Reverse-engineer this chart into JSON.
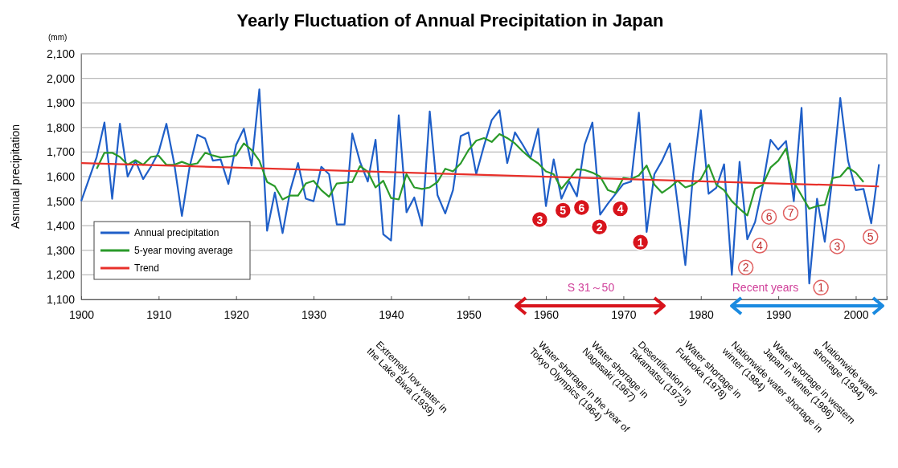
{
  "chart_data": {
    "type": "line",
    "title": "Yearly Fluctuation of Annual Precipitation in Japan",
    "ylabel": "Asnnual precipitation",
    "xlim": [
      1900,
      2004
    ],
    "xticks": [
      1900,
      1910,
      1920,
      1930,
      1940,
      1950,
      1960,
      1970,
      1980,
      1990,
      2000
    ],
    "ylim": [
      1100,
      2100
    ],
    "yticks": [
      {
        "value": 1100,
        "label": "1,100"
      },
      {
        "value": 1200,
        "label": "1,200"
      },
      {
        "value": 1300,
        "label": "1,300"
      },
      {
        "value": 1400,
        "label": "1,400"
      },
      {
        "value": 1500,
        "label": "1,500"
      },
      {
        "value": 1600,
        "label": "1,600"
      },
      {
        "value": 1700,
        "label": "1,700"
      },
      {
        "value": 1800,
        "label": "1,800"
      },
      {
        "value": 1900,
        "label": "1,900"
      },
      {
        "value": 2000,
        "label": "2,000"
      },
      {
        "value": 2100,
        "label": "2,100"
      }
    ],
    "grid": "y",
    "legend": "bottom left",
    "marker": "none",
    "line_style": "solid",
    "series": [
      {
        "name": "Annual precipitation",
        "color": "#1f5fc8",
        "x": [
          1900,
          1901,
          1902,
          1903,
          1904,
          1905,
          1906,
          1907,
          1908,
          1909,
          1910,
          1911,
          1912,
          1913,
          1914,
          1915,
          1916,
          1917,
          1918,
          1919,
          1920,
          1921,
          1922,
          1923,
          1924,
          1925,
          1926,
          1927,
          1928,
          1929,
          1930,
          1931,
          1932,
          1933,
          1934,
          1935,
          1936,
          1937,
          1938,
          1939,
          1940,
          1941,
          1942,
          1943,
          1944,
          1945,
          1946,
          1947,
          1948,
          1949,
          1950,
          1951,
          1952,
          1953,
          1954,
          1955,
          1956,
          1957,
          1958,
          1959,
          1960,
          1961,
          1962,
          1963,
          1964,
          1965,
          1966,
          1967,
          1968,
          1969,
          1970,
          1971,
          1972,
          1973,
          1974,
          1975,
          1976,
          1977,
          1978,
          1979,
          1980,
          1981,
          1982,
          1983,
          1984,
          1985,
          1986,
          1987,
          1988,
          1989,
          1990,
          1991,
          1992,
          1993,
          1994,
          1995,
          1996,
          1997,
          1998,
          1999,
          2000,
          2001,
          2002,
          2003
        ],
        "values": [
          1500,
          1590,
          1680,
          1820,
          1510,
          1815,
          1600,
          1665,
          1590,
          1640,
          1700,
          1815,
          1655,
          1440,
          1640,
          1770,
          1755,
          1665,
          1670,
          1570,
          1730,
          1795,
          1645,
          1955,
          1380,
          1535,
          1370,
          1545,
          1655,
          1510,
          1500,
          1640,
          1610,
          1405,
          1405,
          1775,
          1660,
          1580,
          1750,
          1365,
          1340,
          1850,
          1455,
          1515,
          1400,
          1865,
          1525,
          1450,
          1545,
          1765,
          1780,
          1610,
          1725,
          1830,
          1870,
          1655,
          1780,
          1730,
          1675,
          1795,
          1480,
          1670,
          1510,
          1580,
          1520,
          1730,
          1820,
          1445,
          1490,
          1530,
          1570,
          1580,
          1860,
          1375,
          1610,
          1665,
          1735,
          1490,
          1240,
          1610,
          1870,
          1530,
          1555,
          1650,
          1200,
          1660,
          1345,
          1415,
          1565,
          1750,
          1710,
          1745,
          1500,
          1880,
          1165,
          1510,
          1335,
          1600,
          1920,
          1665,
          1545,
          1550,
          1410,
          1650
        ]
      },
      {
        "name": "5-year moving average",
        "color": "#2a9a2a",
        "x": [
          1902,
          1903,
          1904,
          1905,
          1906,
          1907,
          1908,
          1909,
          1910,
          1911,
          1912,
          1913,
          1914,
          1915,
          1916,
          1917,
          1918,
          1919,
          1920,
          1921,
          1922,
          1923,
          1924,
          1925,
          1926,
          1927,
          1928,
          1929,
          1930,
          1931,
          1932,
          1933,
          1934,
          1935,
          1936,
          1937,
          1938,
          1939,
          1940,
          1941,
          1942,
          1943,
          1944,
          1945,
          1946,
          1947,
          1948,
          1949,
          1950,
          1951,
          1952,
          1953,
          1954,
          1955,
          1956,
          1957,
          1958,
          1959,
          1960,
          1961,
          1962,
          1963,
          1964,
          1965,
          1966,
          1967,
          1968,
          1969,
          1970,
          1971,
          1972,
          1973,
          1974,
          1975,
          1976,
          1977,
          1978,
          1979,
          1980,
          1981,
          1982,
          1983,
          1984,
          1985,
          1986,
          1987,
          1988,
          1989,
          1990,
          1991,
          1992,
          1993,
          1994,
          1995,
          1996,
          1997,
          1998,
          1999,
          2000,
          2001
        ],
        "values": [
          1632,
          1697,
          1697,
          1680,
          1648,
          1667,
          1648,
          1680,
          1685,
          1648,
          1648,
          1660,
          1648,
          1654,
          1697,
          1686,
          1678,
          1681,
          1686,
          1735,
          1708,
          1665,
          1578,
          1561,
          1507,
          1523,
          1523,
          1572,
          1583,
          1545,
          1518,
          1572,
          1575,
          1578,
          1643,
          1620,
          1556,
          1583,
          1513,
          1507,
          1610,
          1556,
          1550,
          1556,
          1578,
          1632,
          1621,
          1654,
          1708,
          1746,
          1757,
          1741,
          1773,
          1757,
          1735,
          1703,
          1675,
          1654,
          1621,
          1610,
          1550,
          1589,
          1630,
          1627,
          1616,
          1600,
          1545,
          1534,
          1595,
          1590,
          1605,
          1645,
          1567,
          1534,
          1556,
          1583,
          1556,
          1567,
          1590,
          1648,
          1567,
          1545,
          1500,
          1469,
          1442,
          1550,
          1567,
          1637,
          1665,
          1714,
          1578,
          1523,
          1469,
          1480,
          1485,
          1594,
          1600,
          1637,
          1616,
          1578
        ]
      },
      {
        "name": "Trend",
        "color": "#e8302a",
        "x": [
          1900,
          2003
        ],
        "values": [
          1655,
          1560
        ]
      }
    ],
    "annotations": [
      "(mm)",
      "S 31～50",
      {
        "text": "3",
        "x": 1959.2,
        "y": 1425
      },
      {
        "text": "5",
        "x": 1962.2,
        "y": 1463
      },
      {
        "text": "6",
        "x": 1964.6,
        "y": 1474
      },
      {
        "text": "2",
        "x": 1966.9,
        "y": 1395
      },
      {
        "text": "4",
        "x": 1969.6,
        "y": 1469
      },
      {
        "text": "1",
        "x": 1972.2,
        "y": 1333
      },
      "Recent years",
      {
        "text": "2",
        "x": 1985.8,
        "y": 1230
      },
      {
        "text": "4",
        "x": 1987.6,
        "y": 1319
      },
      {
        "text": "6",
        "x": 1988.8,
        "y": 1436
      },
      {
        "text": "7",
        "x": 1991.6,
        "y": 1452
      },
      {
        "text": "1",
        "x": 1995.5,
        "y": 1148
      },
      {
        "text": "3",
        "x": 1997.6,
        "y": 1316
      },
      {
        "text": "5",
        "x": 2001.9,
        "y": 1355
      },
      "Extremely low water in\nthe Lake Biwa (1939)",
      "Water shortage in the year of\nTokyo Olympics (1964)",
      "Water shortage in\nNagasaki (1967)",
      "Desertification in\nTakamatsu (1973)",
      "Water shortage in\nFukuoka (1978)",
      "Nationwide water shortage in\nwinter (1984)",
      "Water shortage in western\nJapan in winter (1986)",
      "Nationwide water\nshortage (1994)"
    ]
  }
}
